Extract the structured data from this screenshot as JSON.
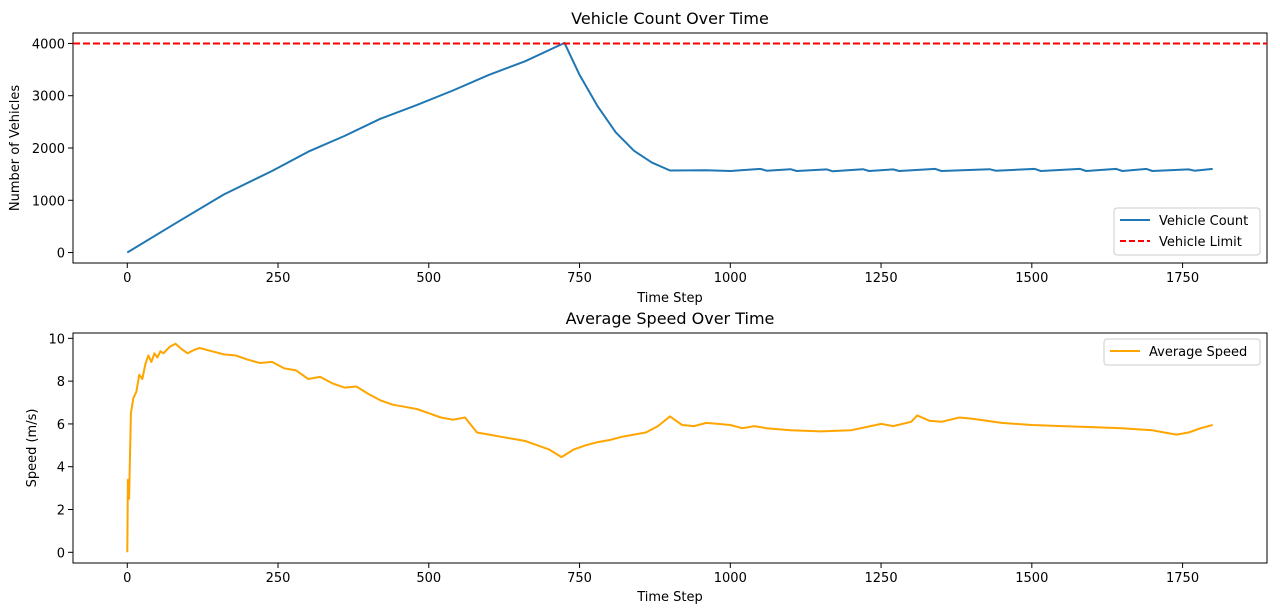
{
  "chart_data": [
    {
      "type": "line",
      "title": "Vehicle Count Over Time",
      "xlabel": "Time Step",
      "ylabel": "Number of Vehicles",
      "xlim": [
        -90,
        1890
      ],
      "ylim": [
        -200,
        4200
      ],
      "x_ticks": [
        0,
        250,
        500,
        750,
        1000,
        1250,
        1500,
        1750
      ],
      "y_ticks": [
        0,
        1000,
        2000,
        3000,
        4000
      ],
      "grid": false,
      "legend_position": "lower-right",
      "series": [
        {
          "name": "Vehicle Count",
          "color": "#1f77b4",
          "style": "solid",
          "points": [
            [
              0,
              0
            ],
            [
              80,
              560
            ],
            [
              160,
              1110
            ],
            [
              240,
              1560
            ],
            [
              300,
              1930
            ],
            [
              360,
              2230
            ],
            [
              420,
              2560
            ],
            [
              480,
              2820
            ],
            [
              540,
              3100
            ],
            [
              600,
              3400
            ],
            [
              660,
              3660
            ],
            [
              725,
              4010
            ],
            [
              750,
              3400
            ],
            [
              780,
              2800
            ],
            [
              810,
              2300
            ],
            [
              840,
              1950
            ],
            [
              870,
              1720
            ],
            [
              900,
              1570
            ],
            [
              960,
              1575
            ],
            [
              1000,
              1560
            ],
            [
              1050,
              1600
            ],
            [
              1060,
              1565
            ],
            [
              1100,
              1595
            ],
            [
              1110,
              1560
            ],
            [
              1160,
              1590
            ],
            [
              1170,
              1555
            ],
            [
              1220,
              1595
            ],
            [
              1230,
              1560
            ],
            [
              1270,
              1590
            ],
            [
              1280,
              1560
            ],
            [
              1340,
              1600
            ],
            [
              1350,
              1560
            ],
            [
              1430,
              1595
            ],
            [
              1440,
              1565
            ],
            [
              1505,
              1600
            ],
            [
              1515,
              1560
            ],
            [
              1580,
              1600
            ],
            [
              1590,
              1560
            ],
            [
              1640,
              1600
            ],
            [
              1650,
              1560
            ],
            [
              1690,
              1600
            ],
            [
              1700,
              1560
            ],
            [
              1760,
              1590
            ],
            [
              1770,
              1565
            ],
            [
              1800,
              1600
            ]
          ]
        },
        {
          "name": "Vehicle Limit",
          "color": "#ff0000",
          "style": "dashed",
          "y_constant": 4000
        }
      ]
    },
    {
      "type": "line",
      "title": "Average Speed Over Time",
      "xlabel": "Time Step",
      "ylabel": "Speed (m/s)",
      "xlim": [
        -90,
        1890
      ],
      "ylim": [
        -0.5,
        10.25
      ],
      "x_ticks": [
        0,
        250,
        500,
        750,
        1000,
        1250,
        1500,
        1750
      ],
      "y_ticks": [
        0,
        2,
        4,
        6,
        8,
        10
      ],
      "grid": false,
      "legend_position": "upper-right",
      "series": [
        {
          "name": "Average Speed",
          "color": "#ffa500",
          "style": "solid",
          "points": [
            [
              0,
              0
            ],
            [
              1,
              3.4
            ],
            [
              3,
              2.5
            ],
            [
              6,
              6.5
            ],
            [
              10,
              7.2
            ],
            [
              15,
              7.5
            ],
            [
              20,
              8.3
            ],
            [
              25,
              8.1
            ],
            [
              30,
              8.8
            ],
            [
              35,
              9.2
            ],
            [
              40,
              8.9
            ],
            [
              45,
              9.3
            ],
            [
              50,
              9.1
            ],
            [
              55,
              9.4
            ],
            [
              60,
              9.3
            ],
            [
              70,
              9.6
            ],
            [
              80,
              9.75
            ],
            [
              90,
              9.5
            ],
            [
              100,
              9.3
            ],
            [
              110,
              9.45
            ],
            [
              120,
              9.55
            ],
            [
              140,
              9.4
            ],
            [
              160,
              9.25
            ],
            [
              180,
              9.2
            ],
            [
              200,
              9.0
            ],
            [
              220,
              8.85
            ],
            [
              240,
              8.9
            ],
            [
              260,
              8.6
            ],
            [
              280,
              8.5
            ],
            [
              300,
              8.1
            ],
            [
              320,
              8.2
            ],
            [
              340,
              7.9
            ],
            [
              360,
              7.7
            ],
            [
              380,
              7.75
            ],
            [
              400,
              7.4
            ],
            [
              420,
              7.1
            ],
            [
              440,
              6.9
            ],
            [
              460,
              6.8
            ],
            [
              480,
              6.7
            ],
            [
              500,
              6.5
            ],
            [
              520,
              6.3
            ],
            [
              540,
              6.2
            ],
            [
              560,
              6.3
            ],
            [
              580,
              5.6
            ],
            [
              600,
              5.5
            ],
            [
              620,
              5.4
            ],
            [
              640,
              5.3
            ],
            [
              660,
              5.2
            ],
            [
              680,
              5.0
            ],
            [
              700,
              4.8
            ],
            [
              720,
              4.45
            ],
            [
              740,
              4.8
            ],
            [
              760,
              5.0
            ],
            [
              780,
              5.15
            ],
            [
              800,
              5.25
            ],
            [
              820,
              5.4
            ],
            [
              840,
              5.5
            ],
            [
              860,
              5.6
            ],
            [
              880,
              5.9
            ],
            [
              900,
              6.35
            ],
            [
              920,
              5.95
            ],
            [
              940,
              5.9
            ],
            [
              960,
              6.05
            ],
            [
              980,
              6.0
            ],
            [
              1000,
              5.95
            ],
            [
              1020,
              5.8
            ],
            [
              1040,
              5.9
            ],
            [
              1060,
              5.8
            ],
            [
              1080,
              5.75
            ],
            [
              1100,
              5.7
            ],
            [
              1150,
              5.65
            ],
            [
              1200,
              5.7
            ],
            [
              1250,
              6.0
            ],
            [
              1270,
              5.9
            ],
            [
              1300,
              6.1
            ],
            [
              1310,
              6.4
            ],
            [
              1330,
              6.15
            ],
            [
              1350,
              6.1
            ],
            [
              1380,
              6.3
            ],
            [
              1400,
              6.25
            ],
            [
              1450,
              6.05
            ],
            [
              1500,
              5.95
            ],
            [
              1550,
              5.9
            ],
            [
              1600,
              5.85
            ],
            [
              1650,
              5.8
            ],
            [
              1700,
              5.7
            ],
            [
              1720,
              5.6
            ],
            [
              1740,
              5.5
            ],
            [
              1760,
              5.6
            ],
            [
              1780,
              5.8
            ],
            [
              1800,
              5.95
            ]
          ]
        }
      ]
    }
  ]
}
